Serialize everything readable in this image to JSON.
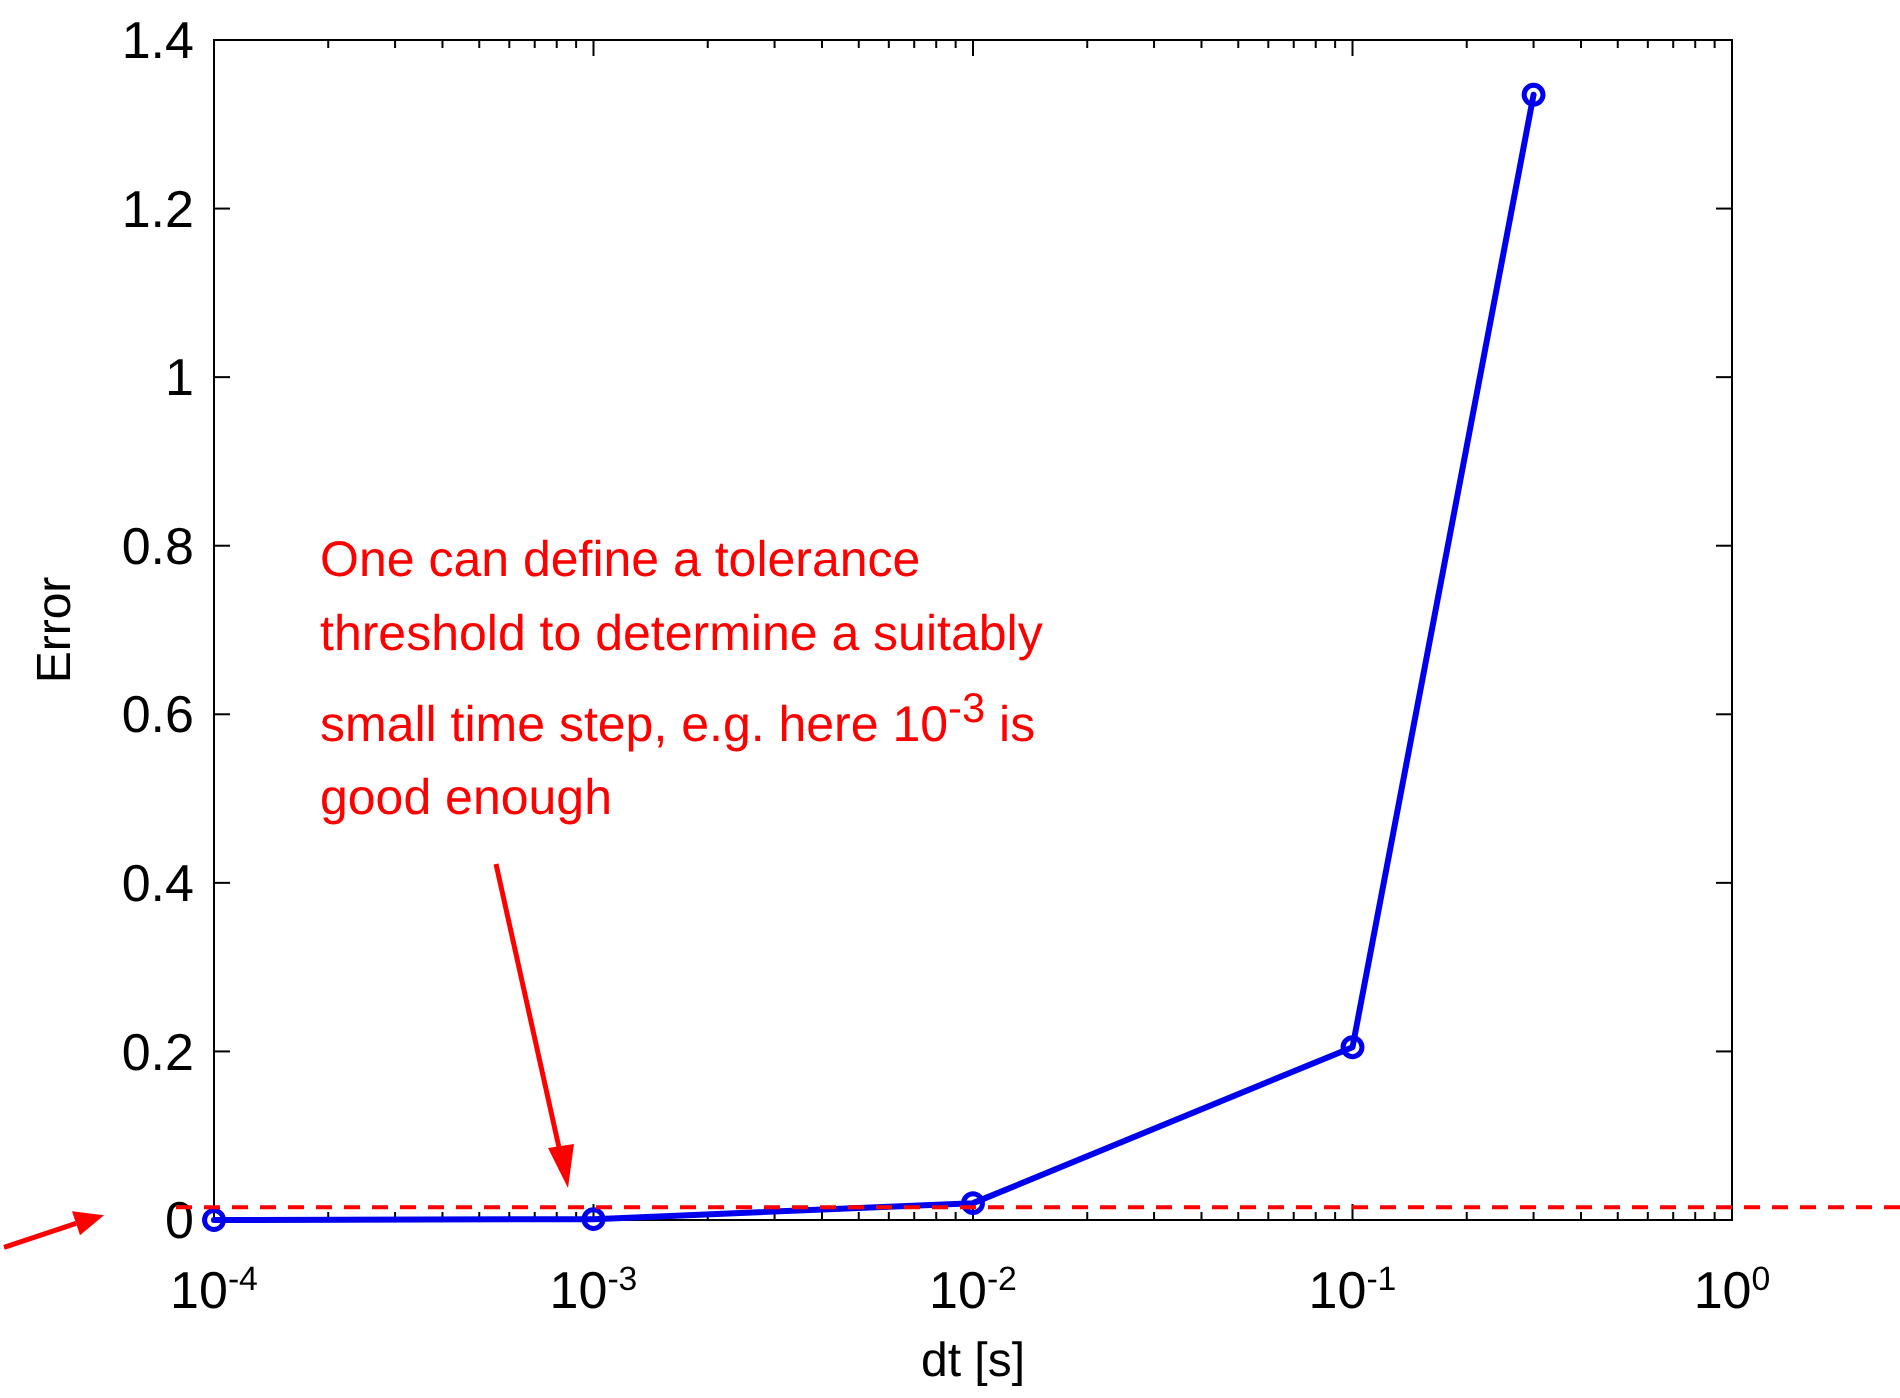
{
  "chart_data": {
    "type": "line",
    "xlabel": "dt [s]",
    "ylabel": "Error",
    "log": "x",
    "x": [
      0.0001,
      0.001,
      0.01,
      0.1,
      0.3
    ],
    "series": [
      {
        "color": "#0000ee",
        "values": [
          0,
          0.001,
          0.02,
          0.205,
          1.335
        ]
      }
    ],
    "marker": "circle",
    "line_style": "solid",
    "grid": false,
    "xlim": [
      0.0001,
      1
    ],
    "xticks": [
      {
        "value": 0.0001,
        "label": "10$^{-4}$"
      },
      {
        "value": 0.001,
        "label": "10$^{-3}$"
      },
      {
        "value": 0.01,
        "label": "10$^{-2}$"
      },
      {
        "value": 0.1,
        "label": "10$^{-1}$"
      },
      {
        "value": 1,
        "label": "10$^{0}$"
      }
    ],
    "ylim": [
      0,
      1.4
    ],
    "yticks": [
      0,
      0.2,
      0.4,
      0.6,
      0.8,
      1,
      1.2,
      1.4
    ],
    "ref_lines": [
      {
        "axis": "y",
        "value": 0.015,
        "color": "#ff0000",
        "line_style": "dashed"
      }
    ],
    "annotations": [
      "One can define a tolerance threshold to determine a suitably small time step, e.g. here 10$^{-3}$  is good enough"
    ]
  }
}
